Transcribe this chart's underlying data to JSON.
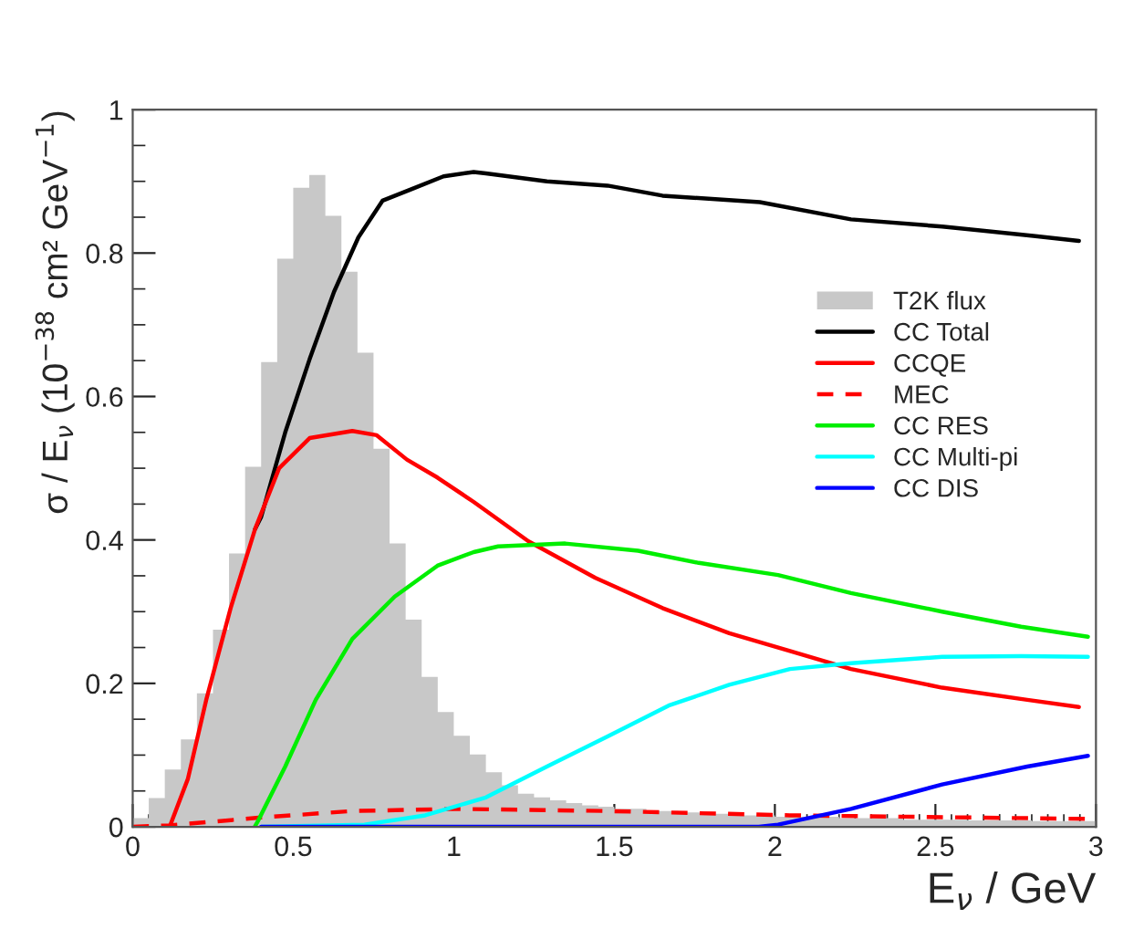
{
  "chart_data": {
    "type": "line",
    "xlabel": "E$_{ν}$ / GeV",
    "ylabel": "σ / E$_{ν}$ (10$^{−38}$ cm² GeV$^{−1}$)",
    "xlim": [
      0,
      3
    ],
    "ylim": [
      0,
      1
    ],
    "xticks": [
      0,
      0.5,
      1,
      1.5,
      2,
      2.5,
      3
    ],
    "yticks": [
      0,
      0.2,
      0.4,
      0.6,
      0.8,
      1
    ],
    "grid": false,
    "legend": "right",
    "series": [
      {
        "name": "T2K flux",
        "type": "histogram",
        "color": "#c8c8c8",
        "bins": [
          0,
          0.05,
          0.1,
          0.15,
          0.2,
          0.25,
          0.3,
          0.35,
          0.4,
          0.45,
          0.5,
          0.55,
          0.6,
          0.65,
          0.7,
          0.75,
          0.8,
          0.85,
          0.9,
          0.95,
          1.0,
          1.05,
          1.1,
          1.15,
          1.2,
          1.25,
          1.3,
          1.35,
          1.4,
          1.45,
          1.5,
          1.6,
          1.7,
          1.8,
          1.9,
          2.0,
          2.2,
          2.4,
          2.6,
          2.8,
          3.0
        ],
        "values": [
          0.012,
          0.04,
          0.08,
          0.122,
          0.186,
          0.275,
          0.381,
          0.502,
          0.648,
          0.792,
          0.891,
          0.909,
          0.852,
          0.774,
          0.661,
          0.527,
          0.395,
          0.289,
          0.209,
          0.16,
          0.127,
          0.101,
          0.076,
          0.058,
          0.046,
          0.041,
          0.037,
          0.033,
          0.03,
          0.028,
          0.025,
          0.022,
          0.02,
          0.018,
          0.016,
          0.014,
          0.012,
          0.01,
          0.009,
          0.008
        ]
      },
      {
        "name": "CC Total",
        "color": "#000000",
        "x": [
          0.381,
          0.4,
          0.475,
          0.551,
          0.627,
          0.703,
          0.778,
          0.873,
          0.968,
          1.062,
          1.1,
          1.29,
          1.479,
          1.65,
          1.953,
          2.237,
          2.521,
          2.805,
          2.947
        ],
        "values": [
          0.415,
          0.432,
          0.55,
          0.652,
          0.746,
          0.822,
          0.873,
          0.89,
          0.907,
          0.913,
          0.911,
          0.9,
          0.894,
          0.88,
          0.871,
          0.847,
          0.837,
          0.824,
          0.817
        ]
      },
      {
        "name": "CCQE",
        "color": "#ff0000",
        "x": [
          0.115,
          0.172,
          0.229,
          0.305,
          0.381,
          0.456,
          0.551,
          0.684,
          0.76,
          0.854,
          0.949,
          1.062,
          1.233,
          1.441,
          1.65,
          1.858,
          2.047,
          2.237,
          2.521,
          2.786,
          2.947
        ],
        "values": [
          0,
          0.067,
          0.177,
          0.305,
          0.415,
          0.5,
          0.542,
          0.552,
          0.546,
          0.512,
          0.487,
          0.453,
          0.398,
          0.347,
          0.305,
          0.27,
          0.245,
          0.22,
          0.194,
          0.177,
          0.167
        ]
      },
      {
        "name": "MEC",
        "color": "#ff0000",
        "line_style": "dashed",
        "x": [
          0.0,
          0.115,
          0.4,
          0.684,
          1.006,
          1.479,
          2.047,
          2.975
        ],
        "values": [
          0.0,
          0.002,
          0.013,
          0.022,
          0.025,
          0.022,
          0.016,
          0.011
        ]
      },
      {
        "name": "CC RES",
        "color": "#00ee00",
        "x": [
          0.38,
          0.39,
          0.475,
          0.57,
          0.684,
          0.816,
          0.949,
          1.062,
          1.138,
          1.347,
          1.574,
          1.763,
          2.01,
          2.237,
          2.521,
          2.767,
          2.975
        ],
        "values": [
          0,
          0.008,
          0.084,
          0.177,
          0.262,
          0.321,
          0.364,
          0.383,
          0.391,
          0.395,
          0.385,
          0.368,
          0.351,
          0.326,
          0.3,
          0.279,
          0.265
        ]
      },
      {
        "name": "CC Multi-pi",
        "color": "#00ffff",
        "x": [
          0.4,
          0.722,
          0.911,
          1.1,
          1.29,
          1.479,
          1.669,
          1.858,
          2.047,
          2.237,
          2.521,
          2.767,
          2.975
        ],
        "values": [
          0,
          0.003,
          0.016,
          0.041,
          0.084,
          0.126,
          0.169,
          0.198,
          0.22,
          0.228,
          0.237,
          0.238,
          0.237
        ]
      },
      {
        "name": "CC DIS",
        "color": "#0000ff",
        "x": [
          0.4,
          1.95,
          2.01,
          2.237,
          2.521,
          2.786,
          2.975
        ],
        "values": [
          0,
          0,
          0.003,
          0.025,
          0.059,
          0.084,
          0.099
        ]
      }
    ]
  }
}
